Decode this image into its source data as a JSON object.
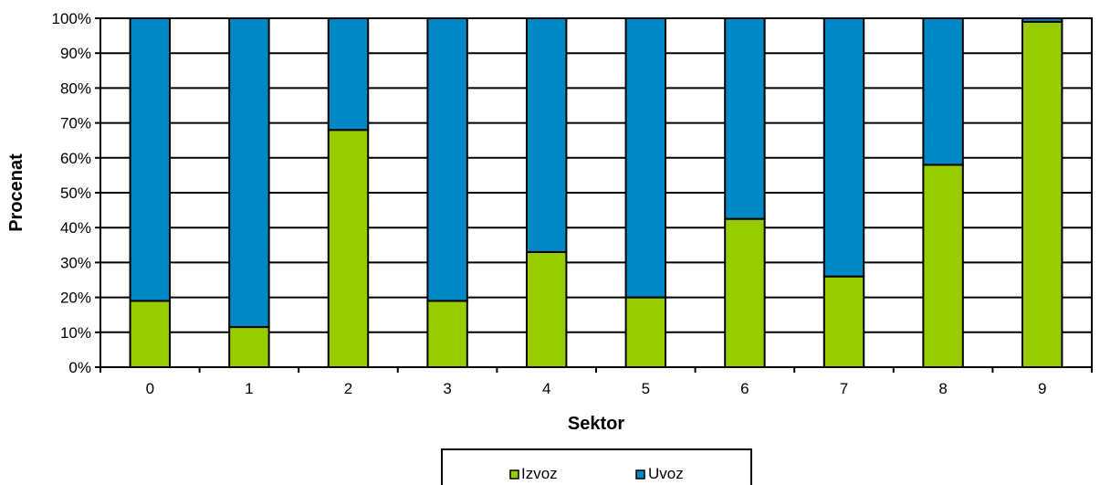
{
  "chart_data": {
    "type": "bar",
    "stacked": true,
    "stacking": "percent",
    "categories": [
      "0",
      "1",
      "2",
      "3",
      "4",
      "5",
      "6",
      "7",
      "8",
      "9"
    ],
    "series": [
      {
        "name": "Izvoz",
        "color": "#99cc00",
        "values": [
          19,
          11.5,
          68,
          19,
          33,
          20,
          42.5,
          26,
          58,
          99
        ]
      },
      {
        "name": "Uvoz",
        "color": "#0088c4",
        "values": [
          81,
          88.5,
          32,
          81,
          67,
          80,
          57.5,
          74,
          42,
          1
        ]
      }
    ],
    "xlabel": "Sektor",
    "ylabel": "Procenat",
    "ylim": [
      0,
      100
    ],
    "yticks": [
      "0%",
      "10%",
      "20%",
      "30%",
      "40%",
      "50%",
      "60%",
      "70%",
      "80%",
      "90%",
      "100%"
    ],
    "grid": true,
    "legend_position": "bottom-center"
  }
}
